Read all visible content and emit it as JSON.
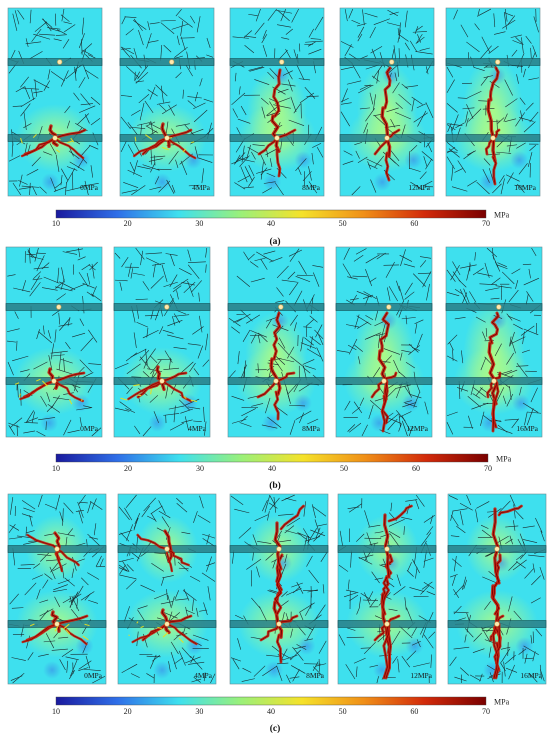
{
  "figure": {
    "colors": {
      "background": "#3ee0ee",
      "panel_border": "#6a8a90",
      "well": "#2a7f88",
      "well_edge": "#0f4a52",
      "fracture_line": "#1a2a2e",
      "hydraulic_crack": "#c8210e",
      "hydraulic_crack_core": "#7a0000",
      "halo": "#b9ff7a",
      "perforation": "#ffe9b0"
    },
    "colorbar": {
      "ticks": [
        "10",
        "20",
        "30",
        "40",
        "50",
        "60",
        "70"
      ],
      "unit": "MPa",
      "stops": [
        "#1a1a9e",
        "#2f6fe8",
        "#3ee0ee",
        "#9af07a",
        "#f5e22a",
        "#f09018",
        "#d22a0a",
        "#7a0000"
      ]
    },
    "groups": [
      {
        "caption": "(a)",
        "perforations": 2,
        "panels": [
          {
            "label": "0MPa",
            "stage": 0
          },
          {
            "label": "4MPa",
            "stage": 1
          },
          {
            "label": "8MPa",
            "stage": 2
          },
          {
            "label": "12MPa",
            "stage": 3
          },
          {
            "label": "16MPa",
            "stage": 4
          }
        ]
      },
      {
        "caption": "(b)",
        "perforations": 2,
        "panels": [
          {
            "label": "0MPa",
            "stage": 0
          },
          {
            "label": "4MPa",
            "stage": 1
          },
          {
            "label": "8MPa",
            "stage": 2
          },
          {
            "label": "12MPa",
            "stage": 3
          },
          {
            "label": "16MPa",
            "stage": 4
          }
        ]
      },
      {
        "caption": "(c)",
        "perforations": 2,
        "panels": [
          {
            "label": "0MPa",
            "stage": 0
          },
          {
            "label": "4MPa",
            "stage": 1
          },
          {
            "label": "8MPa",
            "stage": 2
          },
          {
            "label": "12MPa",
            "stage": 3
          },
          {
            "label": "16MPa",
            "stage": 4
          }
        ]
      }
    ]
  }
}
